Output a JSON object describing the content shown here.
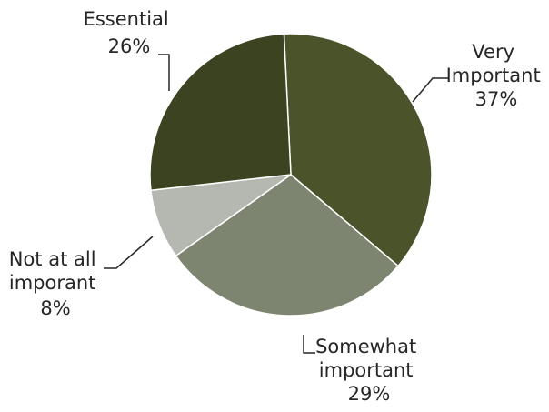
{
  "chart_data": {
    "type": "pie",
    "title": "",
    "slices": [
      {
        "label_lines": [
          "Very",
          "Important"
        ],
        "percent_label": "37%",
        "value": 37,
        "color": "#4a532a"
      },
      {
        "label_lines": [
          "Somewhat",
          "important"
        ],
        "percent_label": "29%",
        "value": 29,
        "color": "#7d8470"
      },
      {
        "label_lines": [
          "Not at all",
          "imporant"
        ],
        "percent_label": "8%",
        "value": 8,
        "color": "#b5b8b0"
      },
      {
        "label_lines": [
          "Essential"
        ],
        "percent_label": "26%",
        "value": 26,
        "color": "#3c4320"
      }
    ],
    "legend": "none"
  }
}
